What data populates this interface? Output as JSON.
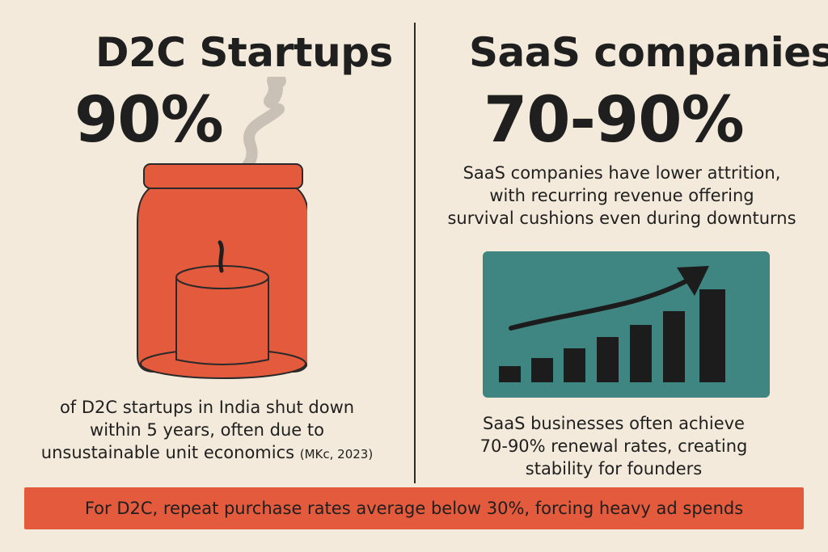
{
  "left": {
    "title": "D2C Startups",
    "stat": "90%",
    "desc_lines": [
      "of D2C startups in India shut down",
      "within 5 years, often due to",
      "unsustainable unit economics"
    ],
    "citation": "(MKc, 2023)",
    "illustration": "candle-jar-icon"
  },
  "right": {
    "title": "SaaS companies",
    "stat": "70-90%",
    "top_desc_lines": [
      "SaaS companies have lower attrition,",
      "with recurring revenue offering",
      "survival cushions even during downturns"
    ],
    "bottom_desc_lines": [
      "SaaS businesses often achieve",
      "70-90% renewal rates, creating",
      "stability for founders"
    ],
    "illustration": "growth-chart-icon"
  },
  "footer": {
    "text": "For D2C, repeat purchase rates average below 30%, forcing heavy ad spends"
  },
  "colors": {
    "background": "#f3eadb",
    "accent_red": "#e35a3c",
    "teal": "#3f8582",
    "ink": "#1f1f1f"
  }
}
